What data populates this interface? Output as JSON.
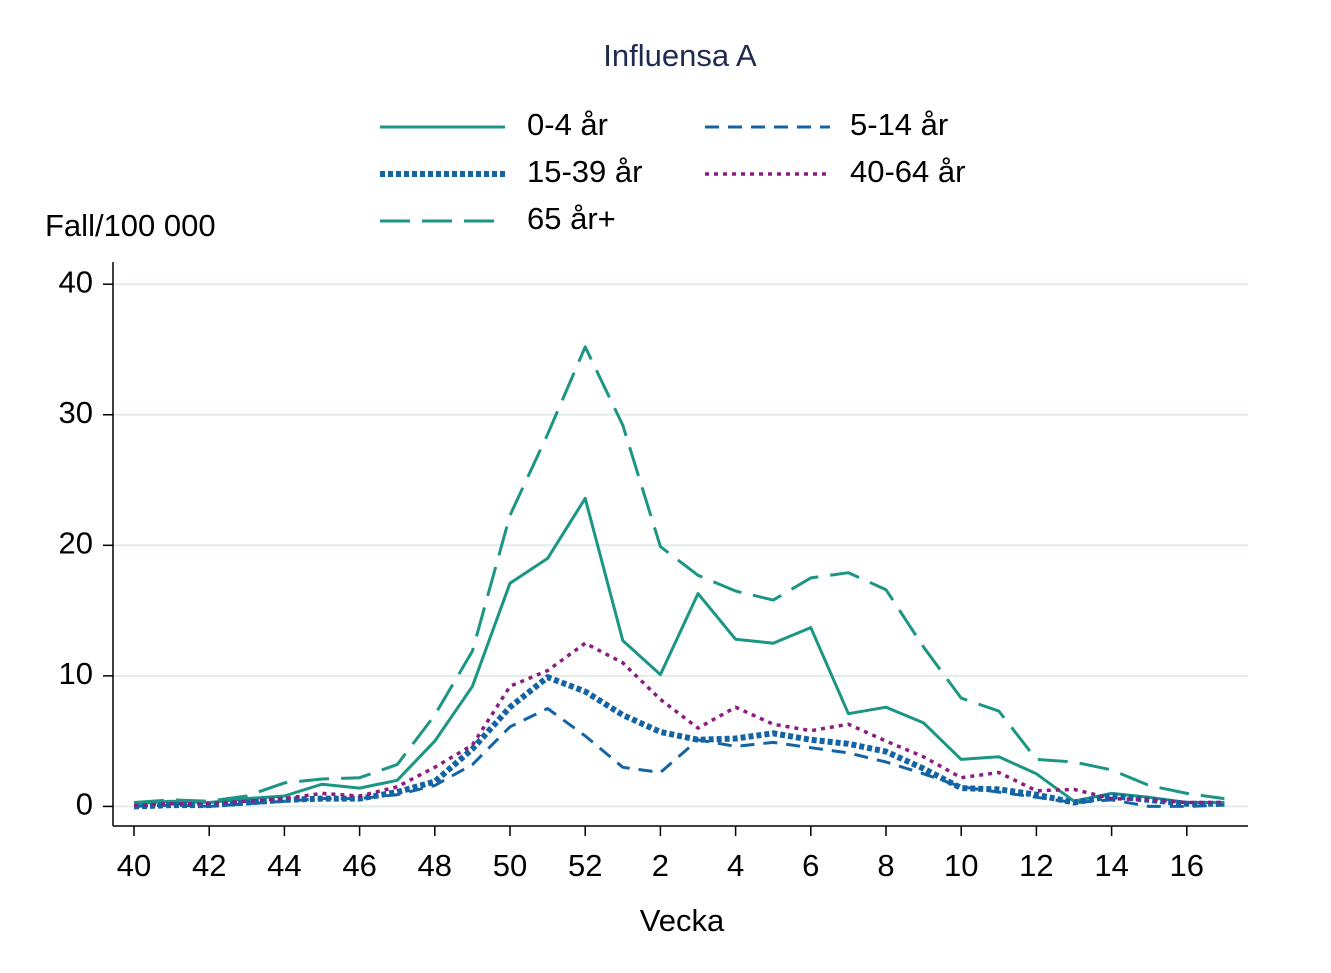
{
  "chart_data": {
    "type": "line",
    "title": "Influensa A",
    "ylabel": "Fall/100 000",
    "xlabel": "Vecka",
    "categories": [
      40,
      null,
      42,
      null,
      44,
      null,
      46,
      null,
      48,
      null,
      50,
      null,
      52,
      null,
      2,
      null,
      4,
      null,
      6,
      null,
      8,
      null,
      10,
      null,
      12,
      null,
      14,
      null,
      16,
      null
    ],
    "ylim": [
      -1.5,
      41.7
    ],
    "yticks": [
      0,
      10,
      20,
      30,
      40
    ],
    "grid": true,
    "legend": "top",
    "series": [
      {
        "name": "0-4 år",
        "color": "#1b9584",
        "style": "solid",
        "values": [
          0.2,
          0.4,
          0.3,
          0.6,
          0.8,
          1.7,
          1.4,
          2.0,
          5.0,
          9.2,
          17.1,
          19.0,
          23.6,
          12.7,
          10.1,
          16.3,
          12.8,
          12.5,
          13.7,
          7.1,
          7.6,
          6.4,
          3.6,
          3.8,
          2.5,
          0.4,
          1.0,
          0.7,
          0.3,
          0.3
        ]
      },
      {
        "name": "5-14 år",
        "color": "#1464a5",
        "style": "dash",
        "values": [
          0.0,
          0.1,
          0.0,
          0.2,
          0.4,
          0.6,
          0.6,
          0.9,
          1.6,
          3.2,
          6.1,
          7.5,
          5.4,
          3.0,
          2.6,
          5.1,
          4.6,
          4.9,
          4.5,
          4.1,
          3.4,
          2.5,
          1.5,
          1.1,
          0.7,
          0.3,
          0.5,
          0.0,
          0.0,
          0.1
        ]
      },
      {
        "name": "15-39 år",
        "color": "#1464a5",
        "style": "dot",
        "values": [
          0.0,
          0.1,
          0.1,
          0.3,
          0.5,
          0.6,
          0.6,
          1.1,
          1.9,
          4.4,
          7.6,
          9.9,
          8.8,
          7.0,
          5.7,
          5.1,
          5.2,
          5.6,
          5.1,
          4.8,
          4.2,
          2.9,
          1.4,
          1.3,
          0.9,
          0.3,
          0.8,
          0.5,
          0.2,
          0.2
        ]
      },
      {
        "name": "40-64 år",
        "color": "#8c1c80",
        "style": "shortdot",
        "values": [
          0.1,
          0.2,
          0.2,
          0.4,
          0.6,
          1.0,
          0.8,
          1.5,
          3.0,
          4.7,
          9.2,
          10.4,
          12.5,
          11.0,
          8.2,
          6.0,
          7.6,
          6.3,
          5.8,
          6.3,
          5.0,
          3.8,
          2.2,
          2.6,
          1.2,
          1.3,
          0.6,
          0.5,
          0.3,
          0.3
        ]
      },
      {
        "name": "65 år+",
        "color": "#1b9584",
        "style": "longdash",
        "values": [
          0.3,
          0.5,
          0.4,
          0.8,
          1.8,
          2.1,
          2.2,
          3.2,
          7.0,
          11.9,
          22.3,
          28.5,
          35.2,
          29.2,
          19.9,
          17.7,
          16.5,
          15.8,
          17.5,
          17.9,
          16.6,
          12.2,
          8.3,
          7.3,
          3.6,
          3.4,
          2.8,
          1.6,
          1.0,
          0.6
        ]
      }
    ]
  }
}
